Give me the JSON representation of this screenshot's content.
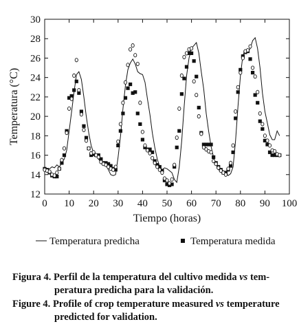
{
  "chart_data": {
    "type": "line",
    "xlabel": "Tiempo (horas)",
    "ylabel": "Temperatura (°C)",
    "xlim": [
      0,
      100
    ],
    "ylim": [
      12,
      30
    ],
    "xticks": [
      0,
      10,
      20,
      30,
      40,
      50,
      60,
      70,
      80,
      90,
      100
    ],
    "yticks": [
      12,
      14,
      16,
      18,
      20,
      22,
      24,
      26,
      28,
      30
    ],
    "grid": false,
    "legend_position": "bottom",
    "series": [
      {
        "name": "Temperatura predicha",
        "style": "line",
        "x": [
          0,
          1,
          2,
          3,
          4,
          5,
          6,
          7,
          8,
          9,
          10,
          11,
          12,
          13,
          14,
          15,
          16,
          17,
          18,
          19,
          20,
          21,
          22,
          23,
          24,
          25,
          26,
          27,
          28,
          29,
          30,
          31,
          32,
          33,
          34,
          35,
          36,
          37,
          38,
          39,
          40,
          41,
          42,
          43,
          44,
          45,
          46,
          47,
          48,
          49,
          50,
          51,
          52,
          53,
          54,
          55,
          56,
          57,
          58,
          59,
          60,
          61,
          62,
          63,
          64,
          65,
          66,
          67,
          68,
          69,
          70,
          71,
          72,
          73,
          74,
          75,
          76,
          77,
          78,
          79,
          80,
          81,
          82,
          83,
          84,
          85,
          86,
          87,
          88,
          89,
          90,
          91,
          92,
          93,
          94,
          95,
          96
        ],
        "y": [
          14.6,
          14.5,
          14.6,
          14.8,
          14.7,
          15.0,
          14.8,
          15.2,
          15.6,
          16.5,
          18.5,
          20.5,
          22.5,
          24.3,
          24.6,
          23.8,
          22.0,
          20.0,
          18.3,
          17.0,
          16.2,
          16.1,
          15.6,
          15.3,
          15.3,
          15.0,
          14.5,
          14.0,
          13.9,
          14.0,
          15.8,
          18.0,
          20.8,
          23.2,
          24.8,
          25.5,
          25.9,
          25.4,
          24.6,
          24.4,
          24.3,
          23.5,
          21.8,
          20.2,
          18.3,
          16.8,
          15.6,
          14.8,
          14.5,
          14.7,
          14.6,
          14.4,
          14.2,
          13.5,
          13.2,
          14.8,
          17.5,
          21.0,
          24.2,
          26.0,
          27.0,
          27.3,
          27.6,
          26.5,
          24.6,
          22.8,
          20.3,
          18.5,
          16.9,
          15.8,
          15.1,
          14.5,
          14.5,
          14.4,
          14.2,
          13.9,
          14.1,
          14.8,
          17.5,
          21.0,
          24.2,
          26.3,
          26.8,
          26.6,
          27.0,
          27.8,
          28.1,
          27.0,
          25.0,
          22.4,
          20.5,
          19.3,
          18.1,
          17.6,
          17.6,
          18.5,
          18.0
        ]
      },
      {
        "name": "Temperatura medida",
        "style": "square",
        "x": [
          0,
          1,
          2,
          3,
          4,
          5,
          6,
          7,
          8,
          9,
          10,
          11,
          12,
          13,
          14,
          15,
          16,
          17,
          18,
          19,
          20,
          21,
          22,
          23,
          24,
          25,
          26,
          27,
          28,
          29,
          30,
          31,
          32,
          33,
          34,
          35,
          36,
          37,
          38,
          39,
          40,
          41,
          42,
          43,
          44,
          45,
          46,
          47,
          48,
          49,
          50,
          51,
          52,
          53,
          54,
          55,
          56,
          57,
          58,
          59,
          60,
          61,
          62,
          63,
          64,
          65,
          66,
          67,
          68,
          69,
          70,
          71,
          72,
          73,
          74,
          75,
          76,
          77,
          78,
          79,
          80,
          81,
          82,
          83,
          84,
          85,
          86,
          87,
          88,
          89,
          90,
          91,
          92,
          93,
          94,
          95,
          96
        ],
        "y": [
          14.6,
          14.5,
          14.2,
          13.9,
          13.8,
          13.8,
          14.6,
          15.2,
          16.0,
          18.5,
          21.9,
          22.1,
          22.7,
          23.6,
          22.4,
          20.5,
          19.0,
          17.8,
          16.7,
          16.0,
          16.1,
          16.0,
          16.0,
          15.6,
          15.2,
          15.2,
          15.1,
          14.9,
          14.6,
          14.5,
          17.0,
          18.5,
          20.3,
          21.9,
          22.9,
          23.3,
          22.4,
          22.5,
          20.3,
          19.2,
          17.6,
          16.8,
          16.6,
          16.6,
          16.3,
          15.4,
          15.0,
          14.8,
          14.4,
          13.4,
          13.0,
          12.9,
          13.0,
          14.8,
          16.8,
          18.5,
          22.3,
          23.9,
          25.1,
          26.5,
          26.5,
          25.7,
          24.1,
          20.9,
          18.3,
          17.1,
          17.1,
          17.1,
          17.1,
          15.8,
          15.2,
          14.8,
          14.5,
          14.2,
          14.2,
          14.5,
          14.9,
          16.3,
          19.8,
          22.5,
          24.8,
          26.2,
          26.6,
          26.7,
          25.9,
          24.5,
          22.2,
          21.4,
          19.5,
          18.7,
          17.5,
          17.1,
          16.3,
          16.0,
          16.0,
          16.0,
          16.0
        ]
      },
      {
        "name": "",
        "style": "circle",
        "x": [
          0,
          1,
          2,
          3,
          4,
          5,
          6,
          7,
          8,
          9,
          10,
          11,
          12,
          13,
          14,
          15,
          16,
          17,
          18,
          19,
          20,
          21,
          22,
          23,
          24,
          25,
          26,
          27,
          28,
          29,
          30,
          31,
          32,
          33,
          34,
          35,
          36,
          37,
          38,
          39,
          40,
          41,
          42,
          43,
          44,
          45,
          46,
          47,
          48,
          49,
          50,
          51,
          52,
          53,
          54,
          55,
          56,
          57,
          58,
          59,
          60,
          61,
          62,
          63,
          64,
          65,
          66,
          67,
          68,
          69,
          70,
          71,
          72,
          73,
          74,
          75,
          76,
          77,
          78,
          79,
          80,
          81,
          82,
          83,
          84,
          85,
          86,
          87,
          88,
          89,
          90,
          91,
          92,
          93,
          94,
          95,
          96
        ],
        "y": [
          14.5,
          14.4,
          14.3,
          14.0,
          13.9,
          14.2,
          14.6,
          15.5,
          16.7,
          18.3,
          20.8,
          21.8,
          24.2,
          25.8,
          22.7,
          20.2,
          18.6,
          17.5,
          16.7,
          16.2,
          16.3,
          16.0,
          15.8,
          15.3,
          15.1,
          15.0,
          14.8,
          14.6,
          14.5,
          14.8,
          17.4,
          19.2,
          21.4,
          23.5,
          25.3,
          26.9,
          27.3,
          26.3,
          25.4,
          21.4,
          18.4,
          17.0,
          16.5,
          16.2,
          15.7,
          15.2,
          14.8,
          14.5,
          14.2,
          13.6,
          13.4,
          13.1,
          13.5,
          15.0,
          17.8,
          20.8,
          24.2,
          26.1,
          26.5,
          26.9,
          27.0,
          23.6,
          22.2,
          20.0,
          18.2,
          16.8,
          16.6,
          16.4,
          16.3,
          15.4,
          15.1,
          14.7,
          14.4,
          14.2,
          14.0,
          14.6,
          15.2,
          17.0,
          20.5,
          23.0,
          24.5,
          26.0,
          26.7,
          26.8,
          27.2,
          25.0,
          24.1,
          22.5,
          20.3,
          19.2,
          18.0,
          17.5,
          17.0,
          16.5,
          16.4,
          16.1,
          16.0
        ]
      }
    ]
  },
  "caption": {
    "es_label": "Figura 4.",
    "es_text_1": "Perfil de la temperatura del cultivo medida ",
    "es_vs": "vs",
    "es_text_2": " tem-",
    "es_text_3": "peratura predicha para la validación.",
    "en_label": "Figure 4.",
    "en_text_1": "Profile of crop temperature measured ",
    "en_vs": "vs",
    "en_text_2": " temperature",
    "en_text_3": "predicted for validation."
  }
}
